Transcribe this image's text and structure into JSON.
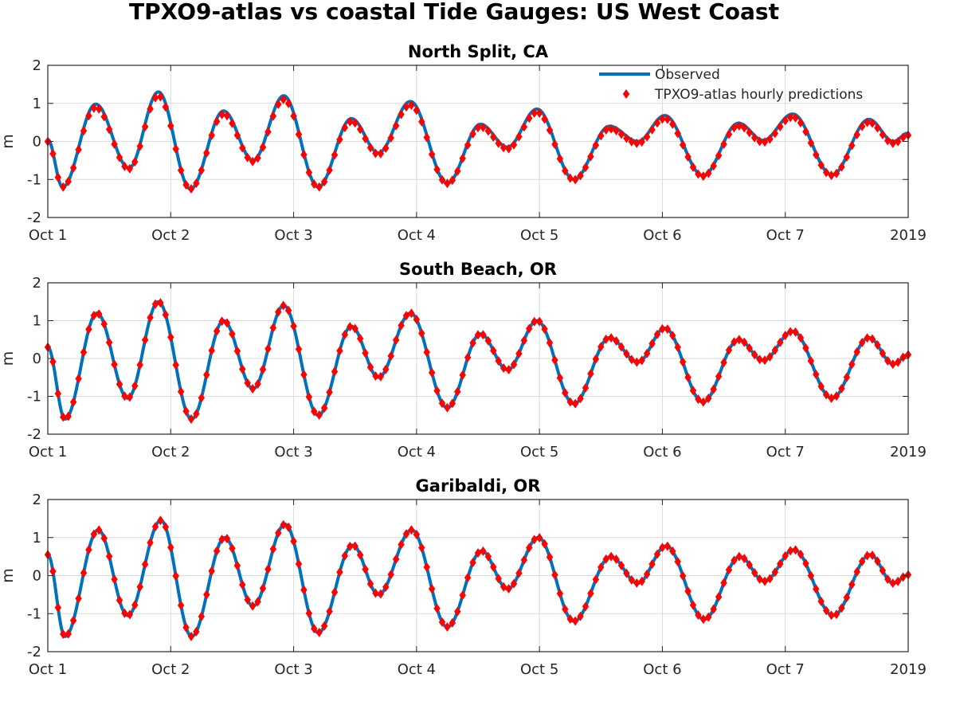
{
  "figure": {
    "title": "TPXO9-atlas vs coastal Tide Gauges: US West Coast"
  },
  "legend": {
    "location": "top-right",
    "entries": [
      {
        "label": "Observed",
        "marker": "line",
        "color": "#0072BD"
      },
      {
        "label": "TPXO9-atlas hourly predictions",
        "marker": "diamond",
        "color": "#FF0000"
      }
    ]
  },
  "colors": {
    "observed": "#0072BD",
    "predicted": "#FF0000",
    "grid": "#DBDBDB",
    "axis": "#262626"
  },
  "chart_data": [
    {
      "type": "line",
      "title": "North Split, CA",
      "xlabel": "",
      "ylabel": "m",
      "xlim": [
        0,
        7
      ],
      "ylim": [
        -2,
        2
      ],
      "yticks": [
        -2,
        -1,
        0,
        1,
        2
      ],
      "xticks": [
        0,
        1,
        2,
        3,
        4,
        5,
        6,
        7
      ],
      "xticklabels": [
        "Oct 1",
        "Oct 2",
        "Oct 3",
        "Oct 4",
        "Oct 5",
        "Oct 6",
        "Oct 7",
        "2019"
      ],
      "grid": true,
      "legend": true,
      "extrema": [
        [
          0.0,
          0.05
        ],
        [
          0.12,
          -1.2
        ],
        [
          0.39,
          0.98
        ],
        [
          0.66,
          -0.7
        ],
        [
          0.9,
          1.3
        ],
        [
          1.16,
          -1.25
        ],
        [
          1.43,
          0.8
        ],
        [
          1.67,
          -0.5
        ],
        [
          1.92,
          1.2
        ],
        [
          2.2,
          -1.2
        ],
        [
          2.47,
          0.6
        ],
        [
          2.69,
          -0.3
        ],
        [
          2.95,
          1.05
        ],
        [
          3.25,
          -1.1
        ],
        [
          3.52,
          0.45
        ],
        [
          3.74,
          -0.15
        ],
        [
          3.98,
          0.85
        ],
        [
          4.28,
          -1.0
        ],
        [
          4.57,
          0.4
        ],
        [
          4.8,
          0.0
        ],
        [
          5.02,
          0.68
        ],
        [
          5.33,
          -0.9
        ],
        [
          5.62,
          0.48
        ],
        [
          5.82,
          0.03
        ],
        [
          6.06,
          0.72
        ],
        [
          6.38,
          -0.88
        ],
        [
          6.68,
          0.58
        ],
        [
          6.88,
          0.0
        ],
        [
          7.0,
          0.22
        ]
      ],
      "series": [
        {
          "name": "Observed",
          "x_step_days": 0.005,
          "offset": 0.0,
          "scale": 1.0
        },
        {
          "name": "TPXO9-atlas hourly predictions",
          "x_step_days": 0.0416667,
          "offset": -0.05,
          "scale": 0.96
        }
      ]
    },
    {
      "type": "line",
      "title": "South Beach, OR",
      "xlabel": "",
      "ylabel": "m",
      "xlim": [
        0,
        7
      ],
      "ylim": [
        -2,
        2
      ],
      "yticks": [
        -2,
        -1,
        0,
        1,
        2
      ],
      "xticks": [
        0,
        1,
        2,
        3,
        4,
        5,
        6,
        7
      ],
      "xticklabels": [
        "Oct 1",
        "Oct 2",
        "Oct 3",
        "Oct 4",
        "Oct 5",
        "Oct 6",
        "Oct 7",
        "2019"
      ],
      "grid": true,
      "legend": false,
      "extrema": [
        [
          0.0,
          0.3
        ],
        [
          0.14,
          -1.6
        ],
        [
          0.4,
          1.2
        ],
        [
          0.65,
          -1.05
        ],
        [
          0.9,
          1.5
        ],
        [
          1.17,
          -1.6
        ],
        [
          1.43,
          1.0
        ],
        [
          1.67,
          -0.8
        ],
        [
          1.92,
          1.4
        ],
        [
          2.2,
          -1.5
        ],
        [
          2.47,
          0.85
        ],
        [
          2.69,
          -0.5
        ],
        [
          2.95,
          1.2
        ],
        [
          3.25,
          -1.3
        ],
        [
          3.52,
          0.65
        ],
        [
          3.74,
          -0.3
        ],
        [
          3.98,
          1.0
        ],
        [
          4.28,
          -1.2
        ],
        [
          4.57,
          0.55
        ],
        [
          4.8,
          -0.1
        ],
        [
          5.02,
          0.8
        ],
        [
          5.33,
          -1.15
        ],
        [
          5.62,
          0.5
        ],
        [
          5.82,
          -0.05
        ],
        [
          6.06,
          0.72
        ],
        [
          6.38,
          -1.05
        ],
        [
          6.68,
          0.55
        ],
        [
          6.88,
          -0.15
        ],
        [
          7.0,
          0.1
        ]
      ],
      "series": [
        {
          "name": "Observed",
          "x_step_days": 0.005,
          "offset": 0.0,
          "scale": 1.0
        },
        {
          "name": "TPXO9-atlas hourly predictions",
          "x_step_days": 0.0416667,
          "offset": 0.0,
          "scale": 1.0
        }
      ]
    },
    {
      "type": "line",
      "title": "Garibaldi, OR",
      "xlabel": "",
      "ylabel": "m",
      "xlim": [
        0,
        7
      ],
      "ylim": [
        -2,
        2
      ],
      "yticks": [
        -2,
        -1,
        0,
        1,
        2
      ],
      "xticks": [
        0,
        1,
        2,
        3,
        4,
        5,
        6,
        7
      ],
      "xticklabels": [
        "Oct 1",
        "Oct 2",
        "Oct 3",
        "Oct 4",
        "Oct 5",
        "Oct 6",
        "Oct 7",
        "2019"
      ],
      "grid": true,
      "legend": false,
      "extrema": [
        [
          0.0,
          0.55
        ],
        [
          0.14,
          -1.6
        ],
        [
          0.41,
          1.2
        ],
        [
          0.65,
          -1.05
        ],
        [
          0.92,
          1.45
        ],
        [
          1.17,
          -1.6
        ],
        [
          1.44,
          1.0
        ],
        [
          1.67,
          -0.8
        ],
        [
          1.93,
          1.35
        ],
        [
          2.2,
          -1.5
        ],
        [
          2.48,
          0.8
        ],
        [
          2.69,
          -0.5
        ],
        [
          2.96,
          1.2
        ],
        [
          3.25,
          -1.35
        ],
        [
          3.53,
          0.65
        ],
        [
          3.74,
          -0.35
        ],
        [
          3.99,
          1.0
        ],
        [
          4.28,
          -1.2
        ],
        [
          4.58,
          0.5
        ],
        [
          4.8,
          -0.2
        ],
        [
          5.03,
          0.78
        ],
        [
          5.34,
          -1.15
        ],
        [
          5.63,
          0.5
        ],
        [
          5.83,
          -0.15
        ],
        [
          6.07,
          0.68
        ],
        [
          6.39,
          -1.05
        ],
        [
          6.69,
          0.55
        ],
        [
          6.88,
          -0.2
        ],
        [
          7.0,
          0.02
        ]
      ],
      "series": [
        {
          "name": "Observed",
          "x_step_days": 0.005,
          "offset": 0.0,
          "scale": 1.0
        },
        {
          "name": "TPXO9-atlas hourly predictions",
          "x_step_days": 0.0416667,
          "offset": 0.0,
          "scale": 1.0
        }
      ]
    }
  ]
}
